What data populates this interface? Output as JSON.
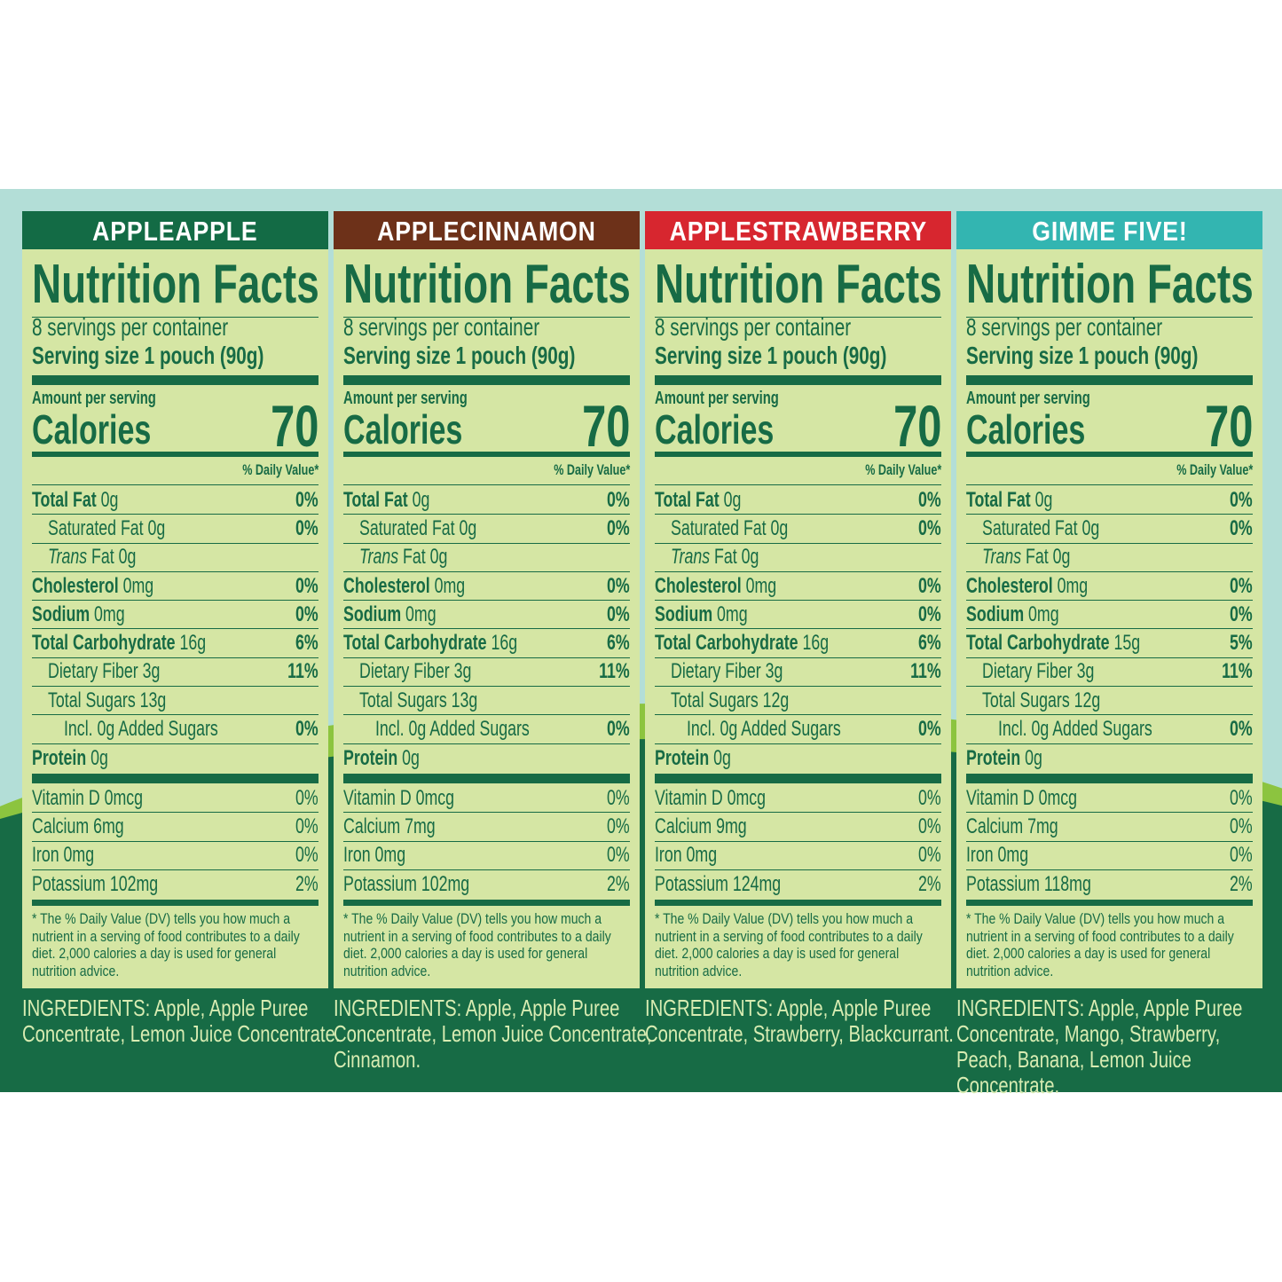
{
  "common": {
    "title": "Nutrition Facts",
    "servings": "8 servings per container",
    "serving_size": "Serving size 1 pouch (90g)",
    "amount_per_serving": "Amount per serving",
    "calories_label": "Calories",
    "dv_header": "% Daily Value*",
    "footnote": "* The % Daily Value (DV) tells you how much a nutrient in a serving of food contributes to a daily diet. 2,000 calories a day is used for general nutrition advice.",
    "ingredients_label": "INGREDIENTS:"
  },
  "panels": [
    {
      "flavor": "APPLEAPPLE",
      "color": "#136b45",
      "calories": "70",
      "nutrients": [
        [
          "Total Fat",
          "0g",
          "0%"
        ],
        [
          "Saturated Fat",
          "0g",
          "0%"
        ],
        [
          "Trans Fat",
          "0g",
          ""
        ],
        [
          "Cholesterol",
          "0mg",
          "0%"
        ],
        [
          "Sodium",
          "0mg",
          "0%"
        ],
        [
          "Total Carbohydrate",
          "16g",
          "6%"
        ],
        [
          "Dietary Fiber",
          "3g",
          "11%"
        ],
        [
          "Total Sugars",
          "13g",
          ""
        ],
        [
          "Incl. 0g Added Sugars",
          "",
          "0%"
        ],
        [
          "Protein",
          "0g",
          ""
        ]
      ],
      "vitamins": [
        [
          "Vitamin D 0mcg",
          "0%"
        ],
        [
          "Calcium 6mg",
          "0%"
        ],
        [
          "Iron 0mg",
          "0%"
        ],
        [
          "Potassium 102mg",
          "2%"
        ]
      ],
      "ingredients": "Apple, Apple Puree Concentrate, Lemon Juice Concentrate."
    },
    {
      "flavor": "APPLECINNAMON",
      "color": "#6d3119",
      "calories": "70",
      "nutrients": [
        [
          "Total Fat",
          "0g",
          "0%"
        ],
        [
          "Saturated Fat",
          "0g",
          "0%"
        ],
        [
          "Trans Fat",
          "0g",
          ""
        ],
        [
          "Cholesterol",
          "0mg",
          "0%"
        ],
        [
          "Sodium",
          "0mg",
          "0%"
        ],
        [
          "Total Carbohydrate",
          "16g",
          "6%"
        ],
        [
          "Dietary Fiber",
          "3g",
          "11%"
        ],
        [
          "Total Sugars",
          "13g",
          ""
        ],
        [
          "Incl. 0g Added Sugars",
          "",
          "0%"
        ],
        [
          "Protein",
          "0g",
          ""
        ]
      ],
      "vitamins": [
        [
          "Vitamin D 0mcg",
          "0%"
        ],
        [
          "Calcium 7mg",
          "0%"
        ],
        [
          "Iron 0mg",
          "0%"
        ],
        [
          "Potassium 102mg",
          "2%"
        ]
      ],
      "ingredients": "Apple, Apple Puree Concentrate, Lemon Juice Concentrate, Cinnamon."
    },
    {
      "flavor": "APPLESTRAWBERRY",
      "color": "#d7262f",
      "calories": "70",
      "nutrients": [
        [
          "Total Fat",
          "0g",
          "0%"
        ],
        [
          "Saturated Fat",
          "0g",
          "0%"
        ],
        [
          "Trans Fat",
          "0g",
          ""
        ],
        [
          "Cholesterol",
          "0mg",
          "0%"
        ],
        [
          "Sodium",
          "0mg",
          "0%"
        ],
        [
          "Total Carbohydrate",
          "16g",
          "6%"
        ],
        [
          "Dietary Fiber",
          "3g",
          "11%"
        ],
        [
          "Total Sugars",
          "12g",
          ""
        ],
        [
          "Incl. 0g Added Sugars",
          "",
          "0%"
        ],
        [
          "Protein",
          "0g",
          ""
        ]
      ],
      "vitamins": [
        [
          "Vitamin D 0mcg",
          "0%"
        ],
        [
          "Calcium 9mg",
          "0%"
        ],
        [
          "Iron 0mg",
          "0%"
        ],
        [
          "Potassium 124mg",
          "2%"
        ]
      ],
      "ingredients": "Apple, Apple Puree Concentrate, Strawberry, Blackcurrant."
    },
    {
      "flavor": "GIMME FIVE!",
      "color": "#33b5b1",
      "calories": "70",
      "nutrients": [
        [
          "Total Fat",
          "0g",
          "0%"
        ],
        [
          "Saturated Fat",
          "0g",
          "0%"
        ],
        [
          "Trans Fat",
          "0g",
          ""
        ],
        [
          "Cholesterol",
          "0mg",
          "0%"
        ],
        [
          "Sodium",
          "0mg",
          "0%"
        ],
        [
          "Total Carbohydrate",
          "15g",
          "5%"
        ],
        [
          "Dietary Fiber",
          "3g",
          "11%"
        ],
        [
          "Total Sugars",
          "12g",
          ""
        ],
        [
          "Incl. 0g Added Sugars",
          "",
          "0%"
        ],
        [
          "Protein",
          "0g",
          ""
        ]
      ],
      "vitamins": [
        [
          "Vitamin D 0mcg",
          "0%"
        ],
        [
          "Calcium 7mg",
          "0%"
        ],
        [
          "Iron 0mg",
          "0%"
        ],
        [
          "Potassium 118mg",
          "2%"
        ]
      ],
      "ingredients": "Apple, Apple Puree Concentrate, Mango, Strawberry, Peach, Banana, Lemon Juice Concentrate."
    }
  ],
  "colors": {
    "panel_bg": "#d5e6a4",
    "text": "#176b45",
    "sky": "#b3ded7",
    "ingredients_text": "#d8ecb2"
  }
}
